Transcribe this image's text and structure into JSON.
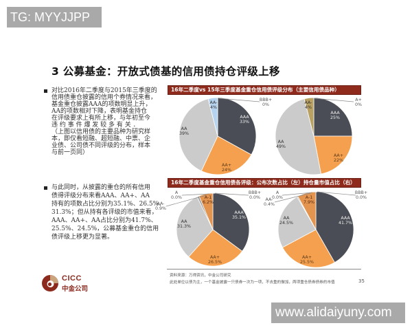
{
  "watermarks": {
    "top_left": "TG: MYYJJPP",
    "bottom_right": "www.alidaiyuny.com"
  },
  "slide": {
    "title": "3 公募基金：开放式债基的信用债持仓评级上移",
    "page_number": "35"
  },
  "left_panel": {
    "bullets": [
      {
        "lines": [
          "对比2016年二季度与2015年三季度的",
          "信用债重仓披露的信用个券情况来看，",
          "基金重仓披露AAA的项数明显上升，",
          "AA的项数相对下降，表明基金持仓",
          "在评级要求上有所上移，与年初至今",
          "违 约 事 件 爆 发 较 多 有 关 ．",
          "（上图以信用债的主要品种为研究样",
          "本，即仅看短融、超短融、中票、企",
          "业债、公司债不同评级的分布，样本",
          "与前一页同）"
        ]
      },
      {
        "lines": [
          "与此同时，从披露的重仓的所有信用",
          "债得评级分布来看AAA、AA+、AA",
          "持有的项数占比分别为35.1%、26.5%、",
          "31.3%；但从持有各评级的市值来看，",
          "AAA、AA+、AA占比分别为41.7%、",
          "25.5%、24.5%，公募基金重仓的信用",
          "债评级上移更为显著。"
        ]
      }
    ]
  },
  "charts": {
    "bar_1_title": "16年二季度vs 15年三季度基金重仓信用债评级分布（主要信用债品种）",
    "bar_2_title": "16年二季度基金重仓信用债各评级：公布次数占比（左）持仓量市值占比（右）"
  },
  "footer": {
    "source": "资料来源：万得资讯，中金公司研究",
    "note": "此处单位以债为主，一个基金披露一只债券一次为一项，不去重的做加，两项重仓债券债券的市值"
  },
  "logo": {
    "en": "CICC",
    "cn": "中金公司"
  },
  "colors": {
    "bar": "#8e2b1d",
    "AAA": "#4a4d55",
    "AA+": "#f5a04e",
    "AA": "#cbcbcb",
    "AA-_blue": "#b5d3ef",
    "AA-_khaki": "#b9a063",
    "A-1": "#e3944f"
  },
  "chart_data": [
    {
      "type": "pie",
      "title": "16年二季度基金重仓信用债评级分布（左上）",
      "slices": [
        {
          "label": "AAA",
          "value": 33,
          "display": "33%",
          "color": "#4a4d55",
          "text": "#f2f2f2"
        },
        {
          "label": "AA+",
          "value": 24,
          "display": "24%",
          "color": "#f5a04e",
          "text": "#5a3a1a"
        },
        {
          "label": "AA",
          "value": 39,
          "display": "39%",
          "color": "#cbcbcb",
          "text": "#333333"
        },
        {
          "label": "AA-",
          "value": 4,
          "display": "4%",
          "color": "#b5d3ef",
          "text": "#333333"
        },
        {
          "label": "BBB+",
          "value": 0,
          "display": "0%",
          "color": "#888888",
          "text": "#555555"
        }
      ]
    },
    {
      "type": "pie",
      "title": "15年三季度基金重仓信用债评级分布（右上）",
      "slices": [
        {
          "label": "AAA",
          "value": 25,
          "display": "25%",
          "color": "#4a4d55",
          "text": "#f2f2f2"
        },
        {
          "label": "AA+",
          "value": 22,
          "display": "22%",
          "color": "#f5a04e",
          "text": "#5a3a1a"
        },
        {
          "label": "AA",
          "value": 49,
          "display": "49%",
          "color": "#cbcbcb",
          "text": "#333333"
        },
        {
          "label": "AA-",
          "value": 4,
          "display": "4%",
          "color": "#b9a063",
          "text": "#333333"
        },
        {
          "label": "A+",
          "value": 0,
          "display": "0%",
          "color": "#888888",
          "text": "#555555"
        }
      ]
    },
    {
      "type": "pie",
      "title": "16年二季度各评级公布次数占比（左下）",
      "slices": [
        {
          "label": "AAA",
          "value": 35.1,
          "display": "35.1%",
          "color": "#4a4d55",
          "text": "#f2f2f2"
        },
        {
          "label": "AA+",
          "value": 26.5,
          "display": "26.5%",
          "color": "#f5a04e",
          "text": "#5a3a1a"
        },
        {
          "label": "AA",
          "value": 31.3,
          "display": "31.3%",
          "color": "#cbcbcb",
          "text": "#333333"
        },
        {
          "label": "AA-",
          "value": 0.9,
          "display": "0.9%",
          "color": "#9a9a9a",
          "text": "#555555"
        },
        {
          "label": "A-1",
          "value": 6.2,
          "display": "6.2%",
          "color": "#e3944f",
          "text": "#5a2a10"
        },
        {
          "label": "A",
          "value": 0.0,
          "display": "0.0%",
          "color": "#888888",
          "text": "#555555"
        },
        {
          "label": "BBB+",
          "value": 0.0,
          "display": "0.0%",
          "color": "#888888",
          "text": "#555555"
        }
      ]
    },
    {
      "type": "pie",
      "title": "16年二季度各评级持仓量市值占比（右下）",
      "slices": [
        {
          "label": "AAA",
          "value": 41.7,
          "display": "41.7%",
          "color": "#4a4d55",
          "text": "#f2f2f2"
        },
        {
          "label": "AA+",
          "value": 25.5,
          "display": "25.5%",
          "color": "#f5a04e",
          "text": "#5a3a1a"
        },
        {
          "label": "AA",
          "value": 24.5,
          "display": "24.5%",
          "color": "#cbcbcb",
          "text": "#333333"
        },
        {
          "label": "AA-",
          "value": 0.4,
          "display": "0.4%",
          "color": "#9a9a9a",
          "text": "#555555"
        },
        {
          "label": "A-1",
          "value": 7.9,
          "display": "7.9%",
          "color": "#e3944f",
          "text": "#5a2a10"
        },
        {
          "label": "A",
          "value": 0.0,
          "display": "0.0%",
          "color": "#888888",
          "text": "#555555"
        },
        {
          "label": "BBB+",
          "value": 0.0,
          "display": "0.0%",
          "color": "#888888",
          "text": "#555555"
        }
      ]
    }
  ]
}
